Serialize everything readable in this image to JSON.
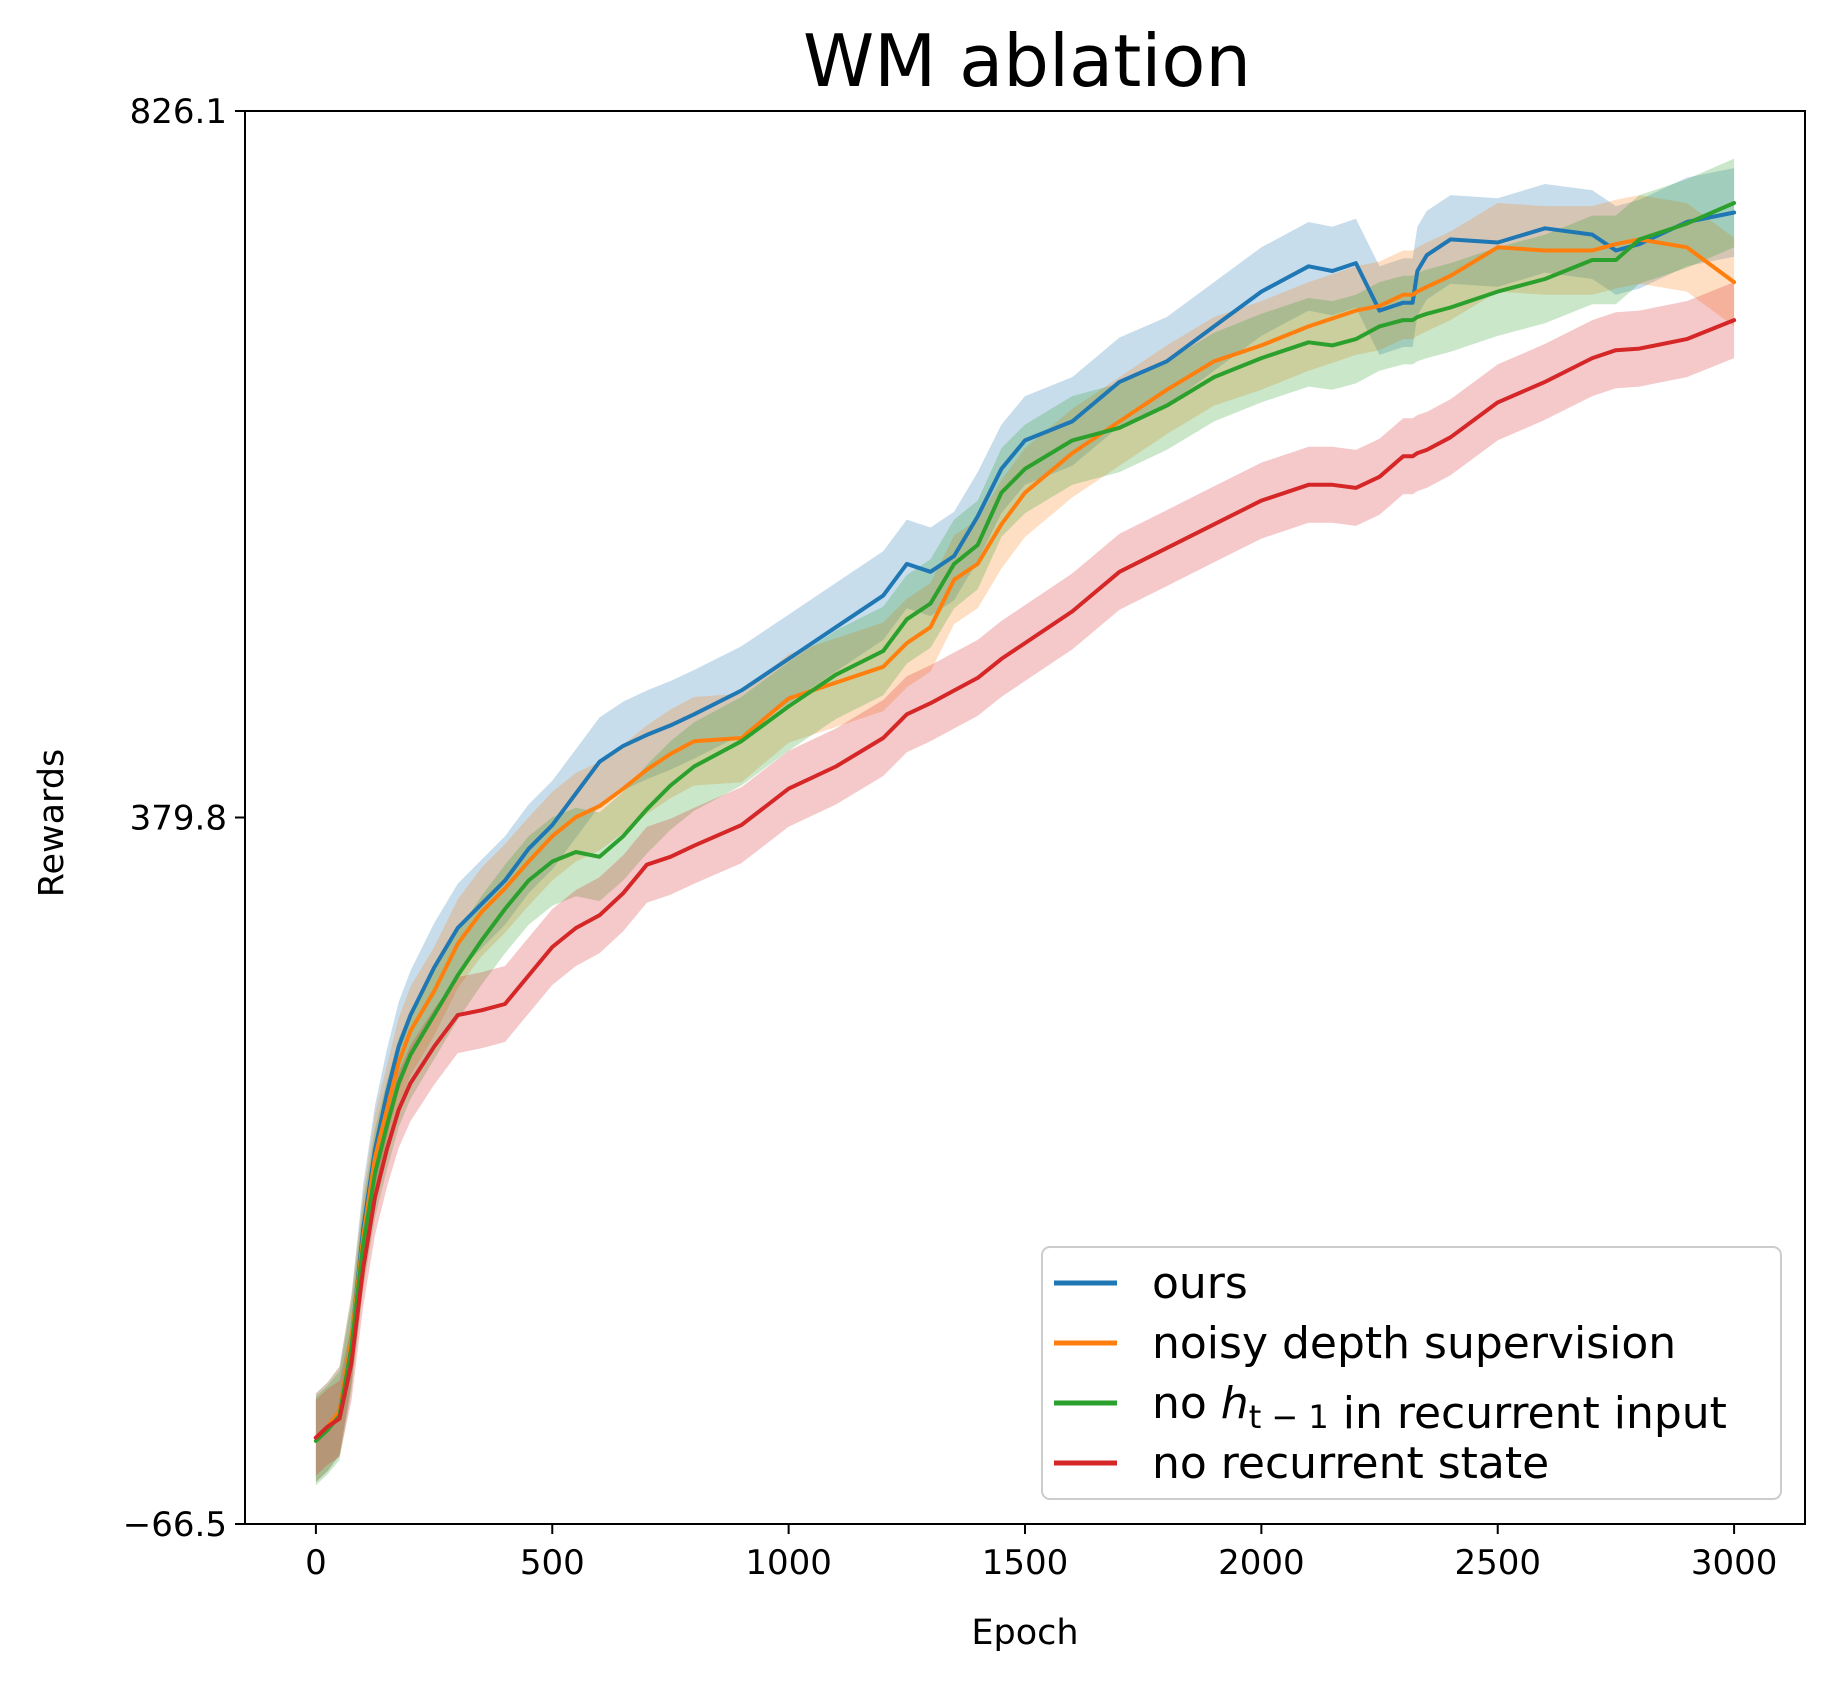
{
  "chart_data": {
    "type": "line",
    "title": "WM ablation",
    "xlabel": "Epoch",
    "ylabel": "Rewards",
    "xlim": [
      -150,
      3150
    ],
    "ylim": [
      -66.5,
      826.1
    ],
    "xticks": [
      0,
      500,
      1000,
      1500,
      2000,
      2500,
      3000
    ],
    "yticks": [
      -66.5,
      379.8,
      826.1
    ],
    "ytick_labels": [
      "−66.5",
      "379.8",
      "826.1"
    ],
    "legend_position": "lower right",
    "grid": false,
    "shaded_band": "std",
    "x": [
      0,
      25,
      50,
      75,
      100,
      125,
      150,
      175,
      200,
      250,
      300,
      350,
      400,
      450,
      500,
      550,
      600,
      650,
      700,
      750,
      800,
      900,
      1000,
      1100,
      1200,
      1250,
      1300,
      1350,
      1400,
      1450,
      1500,
      1600,
      1700,
      1800,
      1900,
      2000,
      2100,
      2150,
      2200,
      2250,
      2300,
      2320,
      2330,
      2350,
      2400,
      2500,
      2600,
      2700,
      2750,
      2800,
      2900,
      3000
    ],
    "series": [
      {
        "name": "ours",
        "color": "#1f77b4",
        "values": [
          -12,
          -5,
          5,
          50,
          120,
          170,
          205,
          235,
          255,
          285,
          310,
          325,
          340,
          360,
          375,
          395,
          415,
          425,
          432,
          438,
          445,
          460,
          480,
          500,
          520,
          540,
          535,
          545,
          570,
          600,
          618,
          630,
          655,
          668,
          690,
          712,
          728,
          725,
          730,
          700,
          705,
          705,
          725,
          735,
          745,
          743,
          752,
          748,
          738,
          742,
          756,
          762
        ],
        "band": [
          28,
          28,
          28,
          28,
          28,
          28,
          28,
          28,
          28,
          28,
          28,
          28,
          28,
          28,
          28,
          28,
          28,
          28,
          28,
          28,
          28,
          28,
          28,
          28,
          28,
          28,
          28,
          28,
          28,
          28,
          28,
          28,
          28,
          28,
          28,
          28,
          28,
          28,
          28,
          28,
          28,
          28,
          28,
          28,
          28,
          28,
          28,
          28,
          28,
          28,
          28,
          28
        ]
      },
      {
        "name": "noisy depth supervision",
        "color": "#ff7f0e",
        "values": [
          -12,
          -5,
          5,
          50,
          115,
          165,
          195,
          225,
          245,
          270,
          300,
          320,
          335,
          352,
          368,
          380,
          387,
          398,
          410,
          420,
          428,
          430,
          455,
          465,
          475,
          490,
          500,
          530,
          540,
          565,
          585,
          610,
          630,
          650,
          668,
          678,
          690,
          695,
          700,
          703,
          710,
          710,
          712,
          715,
          722,
          740,
          738,
          738,
          742,
          745,
          740,
          718
        ],
        "band": [
          28,
          28,
          28,
          28,
          28,
          28,
          28,
          28,
          28,
          28,
          28,
          28,
          28,
          28,
          28,
          28,
          28,
          28,
          28,
          28,
          28,
          28,
          28,
          28,
          28,
          28,
          28,
          28,
          28,
          28,
          28,
          28,
          28,
          28,
          28,
          28,
          28,
          28,
          28,
          28,
          28,
          28,
          28,
          28,
          28,
          28,
          28,
          28,
          28,
          28,
          28,
          28
        ]
      },
      {
        "name": "no $h_{t-1}$ in recurrent input",
        "color": "#2ca02c",
        "values": [
          -14,
          -7,
          2,
          45,
          110,
          155,
          185,
          212,
          230,
          255,
          280,
          302,
          322,
          340,
          352,
          358,
          355,
          368,
          385,
          400,
          412,
          428,
          450,
          470,
          485,
          505,
          515,
          540,
          552,
          585,
          600,
          618,
          626,
          640,
          658,
          670,
          680,
          678,
          682,
          690,
          694,
          694,
          696,
          698,
          702,
          712,
          720,
          732,
          732,
          745,
          755,
          768
        ],
        "band": [
          28,
          28,
          28,
          28,
          28,
          28,
          28,
          28,
          28,
          28,
          28,
          28,
          28,
          28,
          28,
          28,
          28,
          28,
          28,
          28,
          28,
          28,
          28,
          28,
          28,
          28,
          28,
          28,
          28,
          28,
          28,
          28,
          28,
          28,
          28,
          28,
          28,
          28,
          28,
          28,
          28,
          28,
          28,
          28,
          28,
          28,
          28,
          28,
          28,
          28,
          28,
          28
        ]
      },
      {
        "name": "no recurrent state",
        "color": "#d62728",
        "values": [
          -12,
          -5,
          0,
          35,
          95,
          140,
          170,
          195,
          212,
          235,
          255,
          258,
          262,
          280,
          298,
          310,
          318,
          332,
          350,
          355,
          362,
          375,
          398,
          412,
          430,
          445,
          452,
          460,
          468,
          480,
          490,
          510,
          535,
          550,
          565,
          580,
          590,
          590,
          588,
          595,
          608,
          608,
          610,
          612,
          620,
          642,
          655,
          670,
          675,
          676,
          682,
          694
        ],
        "band": [
          24,
          24,
          24,
          24,
          24,
          24,
          24,
          24,
          24,
          24,
          24,
          24,
          24,
          24,
          24,
          24,
          24,
          24,
          24,
          24,
          24,
          24,
          24,
          24,
          24,
          24,
          24,
          24,
          24,
          24,
          24,
          24,
          24,
          24,
          24,
          24,
          24,
          24,
          24,
          24,
          24,
          24,
          24,
          24,
          24,
          24,
          24,
          24,
          24,
          24,
          24,
          24
        ]
      }
    ]
  }
}
